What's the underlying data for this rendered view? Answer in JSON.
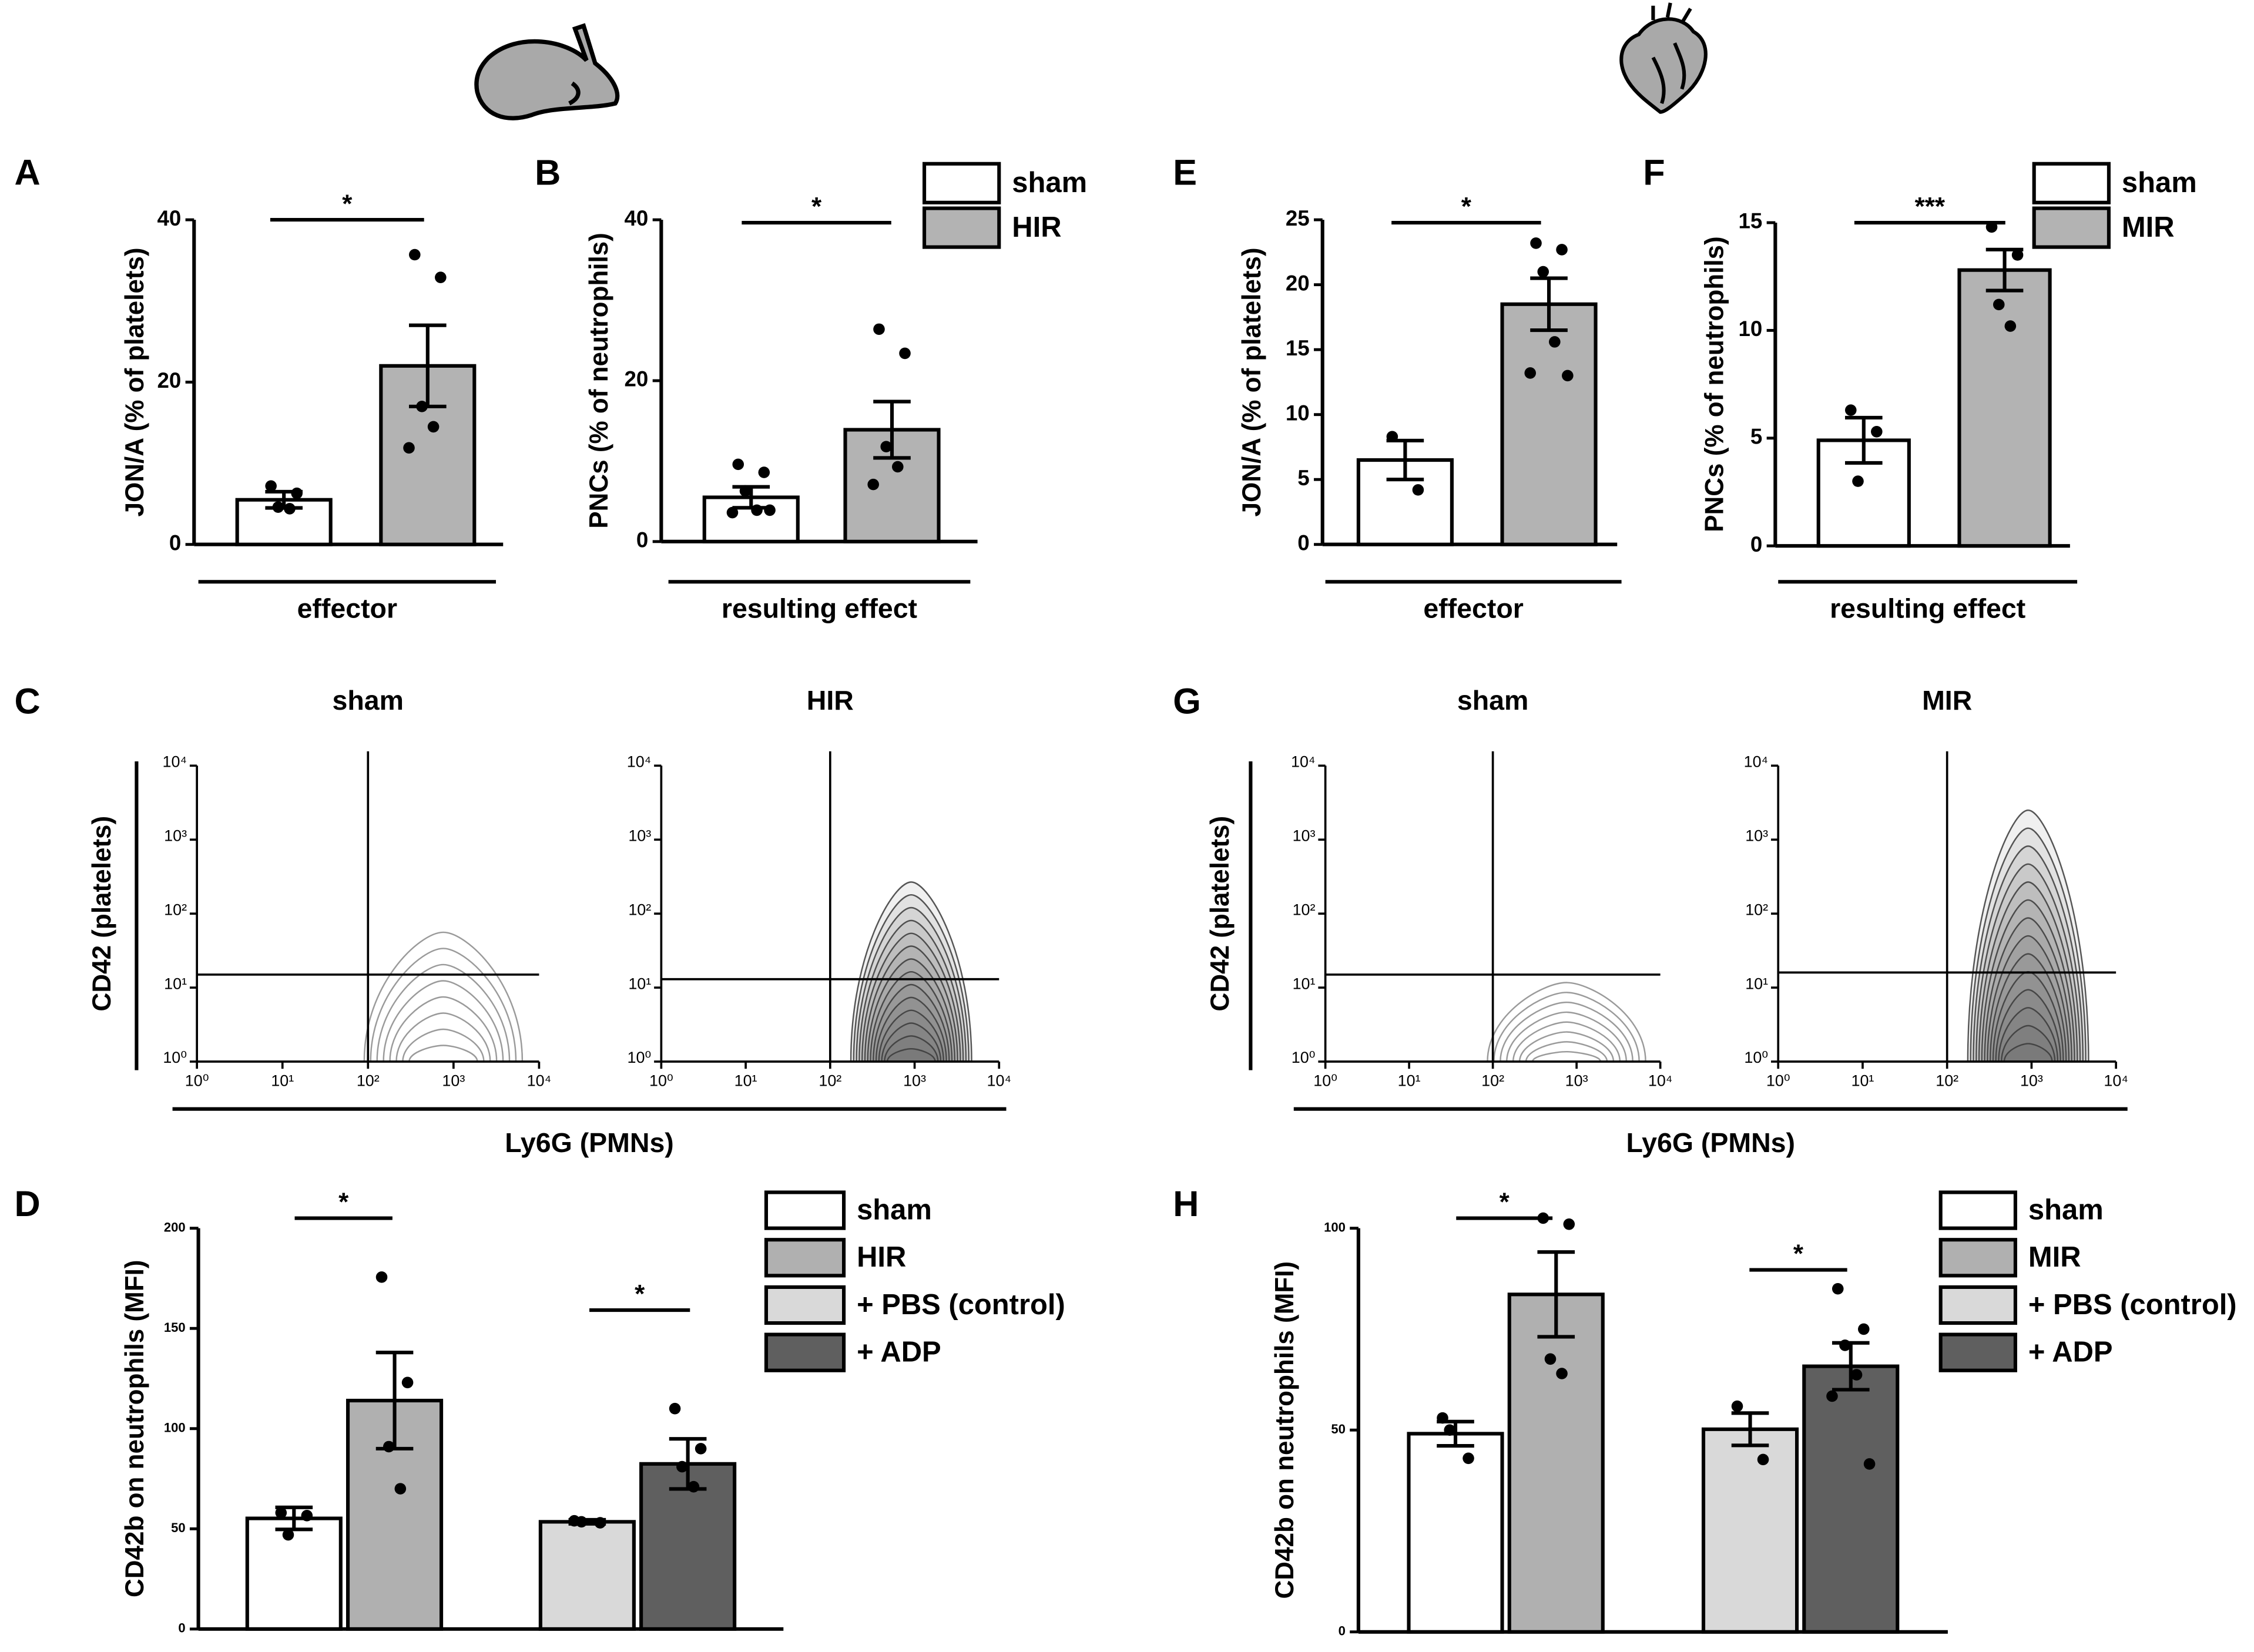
{
  "chart_data": [
    {
      "type": "bar",
      "panel": "A",
      "ylabel": "JON/A (% of platelets)",
      "group_label": "effector",
      "ylim": [
        0,
        40
      ],
      "yticks": [
        0,
        20,
        40
      ],
      "series": [
        {
          "color": "#ffffff",
          "values": [
            5.5
          ],
          "errors": [
            1
          ],
          "points": [
            [
              7.2,
              6.3,
              4.6,
              4.4
            ]
          ]
        },
        {
          "color": "#b3b3b3",
          "values": [
            22
          ],
          "errors": [
            5
          ],
          "points": [
            [
              35.7,
              32.9,
              17,
              14.5,
              11.9
            ]
          ]
        }
      ],
      "significance": [
        "*"
      ]
    },
    {
      "type": "bar",
      "panel": "B",
      "ylabel": "PNCs (% of neutrophils)",
      "group_label": "resulting effect",
      "ylim": [
        0,
        40
      ],
      "yticks": [
        0,
        20,
        40
      ],
      "series": [
        {
          "name": "sham",
          "color": "#ffffff",
          "values": [
            5.5
          ],
          "errors": [
            1.3
          ],
          "points": [
            [
              9.6,
              8.6,
              6.3,
              3.9,
              3.6,
              3.9
            ]
          ]
        },
        {
          "name": "HIR",
          "color": "#b3b3b3",
          "values": [
            13.9
          ],
          "errors": [
            3.5
          ],
          "points": [
            [
              26.4,
              23.4,
              11.8,
              9.3,
              7.1
            ]
          ]
        }
      ],
      "significance": [
        "*"
      ]
    },
    {
      "type": "flow",
      "panel": "C",
      "ylabel": "CD42 (platelets)",
      "xlabel": "Ly6G (PMNs)",
      "log": true,
      "xlim": [
        1,
        10000
      ],
      "ylim": [
        1,
        10000
      ],
      "xticks": [
        {
          "value": 1,
          "label": "10⁰"
        },
        {
          "value": 10,
          "label": "10¹"
        },
        {
          "value": 100,
          "label": "10²"
        },
        {
          "value": 1000,
          "label": "10³"
        },
        {
          "value": 10000,
          "label": "10⁴"
        }
      ],
      "yticks": [
        {
          "value": 1,
          "label": "10⁰"
        },
        {
          "value": 10,
          "label": "10¹"
        },
        {
          "value": 100,
          "label": "10²"
        },
        {
          "value": 1000,
          "label": "10³"
        },
        {
          "value": 10000,
          "label": "10⁴"
        }
      ],
      "plots": [
        {
          "title": "sham",
          "gate": [
            100,
            15
          ]
        },
        {
          "title": "HIR",
          "gate": [
            100,
            13
          ]
        }
      ]
    },
    {
      "type": "grouped_bar",
      "panel": "D",
      "ylabel": "CD42b on neutrophils (MFI)",
      "ylim": [
        0,
        200
      ],
      "yticks": [
        0,
        50,
        100,
        150,
        200
      ],
      "series": [
        {
          "name": "sham",
          "color": "#ffffff",
          "values": [
            55.2
          ],
          "errors": [
            5.5
          ],
          "points": [
            [
              58,
              56.6,
              47
            ]
          ]
        },
        {
          "name": "HIR",
          "color": "#b0b0b0",
          "values": [
            114
          ],
          "errors": [
            24
          ],
          "points": [
            [
              175.6,
              123,
              91,
              70
            ]
          ]
        },
        {
          "name": "+ PBS (control)",
          "color": "#d9d9d9",
          "values": [
            53.5
          ],
          "errors": [
            1
          ],
          "points": [
            [
              54,
              53,
              53.5
            ]
          ]
        },
        {
          "name": "+ ADP",
          "color": "#5f5f5f",
          "values": [
            82.4
          ],
          "errors": [
            12.5
          ],
          "points": [
            [
              110,
              90,
              81,
              71
            ]
          ]
        }
      ],
      "significance": [
        "*",
        "*"
      ]
    },
    {
      "type": "bar",
      "panel": "E",
      "ylabel": "JON/A (% of platelets)",
      "group_label": "effector",
      "ylim": [
        0,
        25
      ],
      "yticks": [
        0,
        5,
        10,
        15,
        20,
        25
      ],
      "series": [
        {
          "color": "#ffffff",
          "values": [
            6.5
          ],
          "errors": [
            1.5
          ],
          "points": [
            [
              8.3,
              4.2
            ]
          ]
        },
        {
          "color": "#b3b3b3",
          "values": [
            18.5
          ],
          "errors": [
            2
          ],
          "points": [
            [
              23.2,
              22.7,
              21,
              15.6,
              13.2,
              13
            ]
          ]
        }
      ],
      "significance": [
        "*"
      ]
    },
    {
      "type": "bar",
      "panel": "F",
      "ylabel": "PNCs (% of neutrophils)",
      "group_label": "resulting effect",
      "ylim": [
        0,
        15
      ],
      "yticks": [
        0,
        5,
        10,
        15
      ],
      "series": [
        {
          "name": "sham",
          "color": "#ffffff",
          "values": [
            4.9
          ],
          "errors": [
            1.05
          ],
          "points": [
            [
              6.3,
              5.3,
              3
            ]
          ]
        },
        {
          "name": "MIR",
          "color": "#b3b3b3",
          "values": [
            12.8
          ],
          "errors": [
            0.95
          ],
          "points": [
            [
              14.8,
              13.5,
              11.2,
              10.2
            ]
          ]
        }
      ],
      "significance": [
        "***"
      ]
    },
    {
      "type": "flow",
      "panel": "G",
      "ylabel": "CD42 (platelets)",
      "xlabel": "Ly6G (PMNs)",
      "log": true,
      "xlim": [
        1,
        10000
      ],
      "ylim": [
        1,
        10000
      ],
      "xticks": [
        {
          "value": 1,
          "label": "10⁰"
        },
        {
          "value": 10,
          "label": "10¹"
        },
        {
          "value": 100,
          "label": "10²"
        },
        {
          "value": 1000,
          "label": "10³"
        },
        {
          "value": 10000,
          "label": "10⁴"
        }
      ],
      "yticks": [
        {
          "value": 1,
          "label": "10⁰"
        },
        {
          "value": 10,
          "label": "10¹"
        },
        {
          "value": 100,
          "label": "10²"
        },
        {
          "value": 1000,
          "label": "10³"
        },
        {
          "value": 10000,
          "label": "10⁴"
        }
      ],
      "plots": [
        {
          "title": "sham",
          "gate": [
            100,
            15
          ]
        },
        {
          "title": "MIR",
          "gate": [
            100,
            16
          ]
        }
      ]
    },
    {
      "type": "grouped_bar",
      "panel": "H",
      "ylabel": "CD42b on neutrophils (MFI)",
      "ylim": [
        0,
        100
      ],
      "yticks": [
        0,
        50,
        100
      ],
      "series": [
        {
          "name": "sham",
          "color": "#ffffff",
          "values": [
            49.1
          ],
          "errors": [
            3
          ],
          "points": [
            [
              53,
              43,
              50
            ]
          ]
        },
        {
          "name": "MIR",
          "color": "#b0b0b0",
          "values": [
            83.6
          ],
          "errors": [
            10.5
          ],
          "points": [
            [
              102.5,
              101,
              67.6,
              64
            ]
          ]
        },
        {
          "name": "+ PBS (control)",
          "color": "#d9d9d9",
          "values": [
            50.2
          ],
          "errors": [
            4
          ],
          "points": [
            [
              55.9,
              42.7
            ]
          ]
        },
        {
          "name": "+ ADP",
          "color": "#5f5f5f",
          "values": [
            65.8
          ],
          "errors": [
            5.8
          ],
          "points": [
            [
              85,
              75,
              71,
              63.7,
              58.4,
              41.6
            ]
          ]
        }
      ],
      "significance": [
        "*",
        "*"
      ]
    }
  ]
}
